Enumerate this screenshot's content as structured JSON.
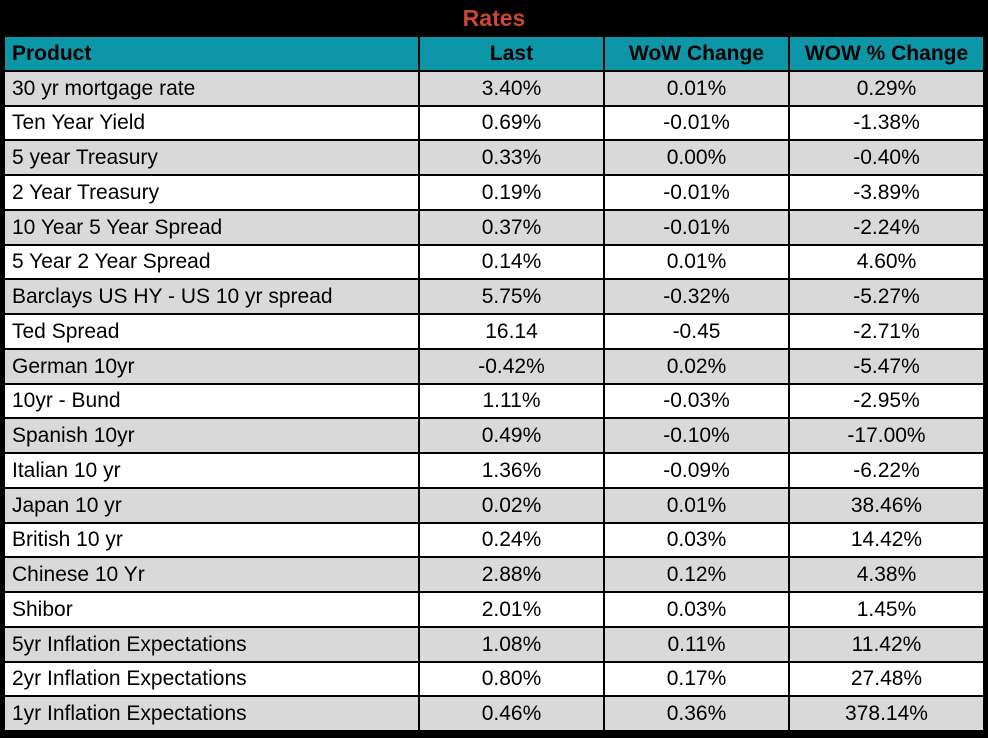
{
  "theme": {
    "title_bg": "#000000",
    "title_color": "#CC4730",
    "header_bg": "#0D96A8",
    "header_text": "#000000",
    "row_alt_bg": "#D9D9D9",
    "row_bg": "#FFFFFF",
    "grid_color": "#000000"
  },
  "chart_data": {
    "type": "table",
    "title": "Rates",
    "columns": [
      "Product",
      "Last",
      "WoW Change",
      "WOW % Change"
    ],
    "rows": [
      [
        "30 yr mortgage rate",
        "3.40%",
        "0.01%",
        "0.29%"
      ],
      [
        "Ten Year Yield",
        "0.69%",
        "-0.01%",
        "-1.38%"
      ],
      [
        "5 year Treasury",
        "0.33%",
        "0.00%",
        "-0.40%"
      ],
      [
        "2 Year Treasury",
        "0.19%",
        "-0.01%",
        "-3.89%"
      ],
      [
        "10 Year 5 Year Spread",
        "0.37%",
        "-0.01%",
        "-2.24%"
      ],
      [
        "5 Year 2 Year Spread",
        "0.14%",
        "0.01%",
        "4.60%"
      ],
      [
        "Barclays US HY - US 10 yr spread",
        "5.75%",
        "-0.32%",
        "-5.27%"
      ],
      [
        "Ted Spread",
        "16.14",
        "-0.45",
        "-2.71%"
      ],
      [
        "German 10yr",
        "-0.42%",
        "0.02%",
        "-5.47%"
      ],
      [
        "10yr - Bund",
        "1.11%",
        "-0.03%",
        "-2.95%"
      ],
      [
        "Spanish 10yr",
        "0.49%",
        "-0.10%",
        "-17.00%"
      ],
      [
        "Italian 10 yr",
        "1.36%",
        "-0.09%",
        "-6.22%"
      ],
      [
        "Japan 10 yr",
        "0.02%",
        "0.01%",
        "38.46%"
      ],
      [
        "British 10 yr",
        "0.24%",
        "0.03%",
        "14.42%"
      ],
      [
        "Chinese 10 Yr",
        "2.88%",
        "0.12%",
        "4.38%"
      ],
      [
        "Shibor",
        "2.01%",
        "0.03%",
        "1.45%"
      ],
      [
        "5yr Inflation Expectations",
        "1.08%",
        "0.11%",
        "11.42%"
      ],
      [
        "2yr Inflation Expectations",
        "0.80%",
        "0.17%",
        "27.48%"
      ],
      [
        "1yr Inflation Expectations",
        "0.46%",
        "0.36%",
        "378.14%"
      ]
    ]
  }
}
